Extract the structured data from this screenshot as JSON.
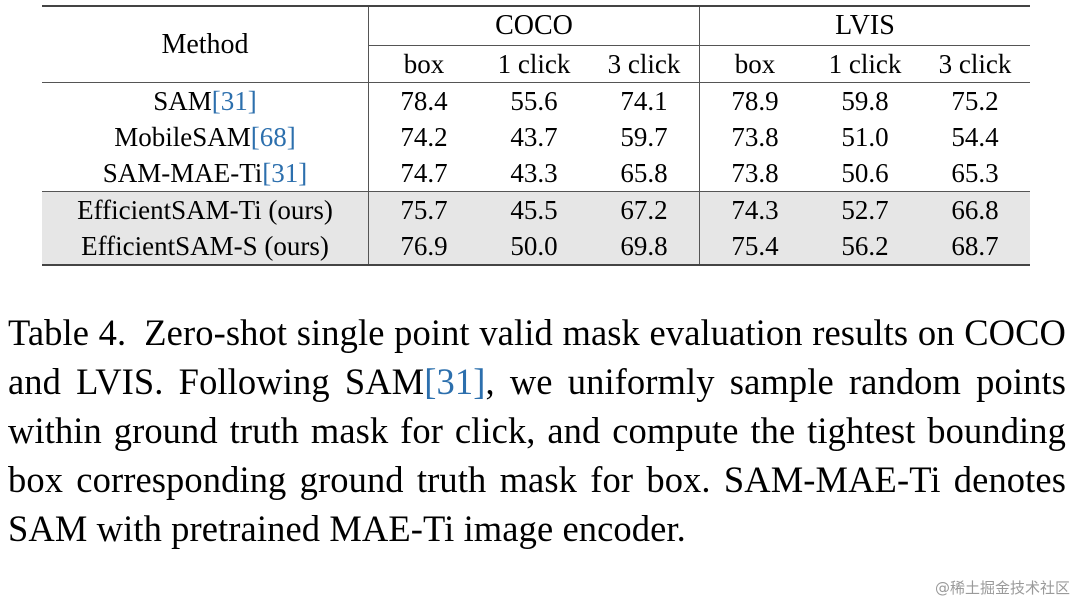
{
  "table": {
    "method_header": "Method",
    "groups": [
      "COCO",
      "LVIS"
    ],
    "subheaders": [
      "box",
      "1 click",
      "3 click",
      "box",
      "1 click",
      "3 click"
    ],
    "rows": [
      {
        "method": "SAM",
        "ref": "[31]",
        "values": [
          "78.4",
          "55.6",
          "74.1",
          "78.9",
          "59.8",
          "75.2"
        ]
      },
      {
        "method": "MobileSAM",
        "ref": "[68]",
        "values": [
          "74.2",
          "43.7",
          "59.7",
          "73.8",
          "51.0",
          "54.4"
        ]
      },
      {
        "method": "SAM-MAE-Ti",
        "ref": "[31]",
        "values": [
          "74.7",
          "43.3",
          "65.8",
          "73.8",
          "50.6",
          "65.3"
        ]
      },
      {
        "method": "EfficientSAM-Ti (ours)",
        "ref": "",
        "values": [
          "75.7",
          "45.5",
          "67.2",
          "74.3",
          "52.7",
          "66.8"
        ]
      },
      {
        "method": "EfficientSAM-S (ours)",
        "ref": "",
        "values": [
          "76.9",
          "50.0",
          "69.8",
          "75.4",
          "56.2",
          "68.7"
        ]
      }
    ]
  },
  "caption": {
    "label": "Table 4.",
    "text_1": "Zero-shot single point valid mask evaluation results on COCO and LVIS. Following SAM",
    "ref": "[31]",
    "text_2": ", we uniformly sample random points within ground truth mask for click, and compute the tightest bounding box corresponding ground truth mask for box. SAM-MAE-Ti denotes SAM with pretrained MAE-Ti image encoder."
  },
  "watermark": "@稀土掘金技术社区",
  "colors": {
    "ref_link": "#2c6fad",
    "ours_row_bg": "#e6e6e6"
  }
}
